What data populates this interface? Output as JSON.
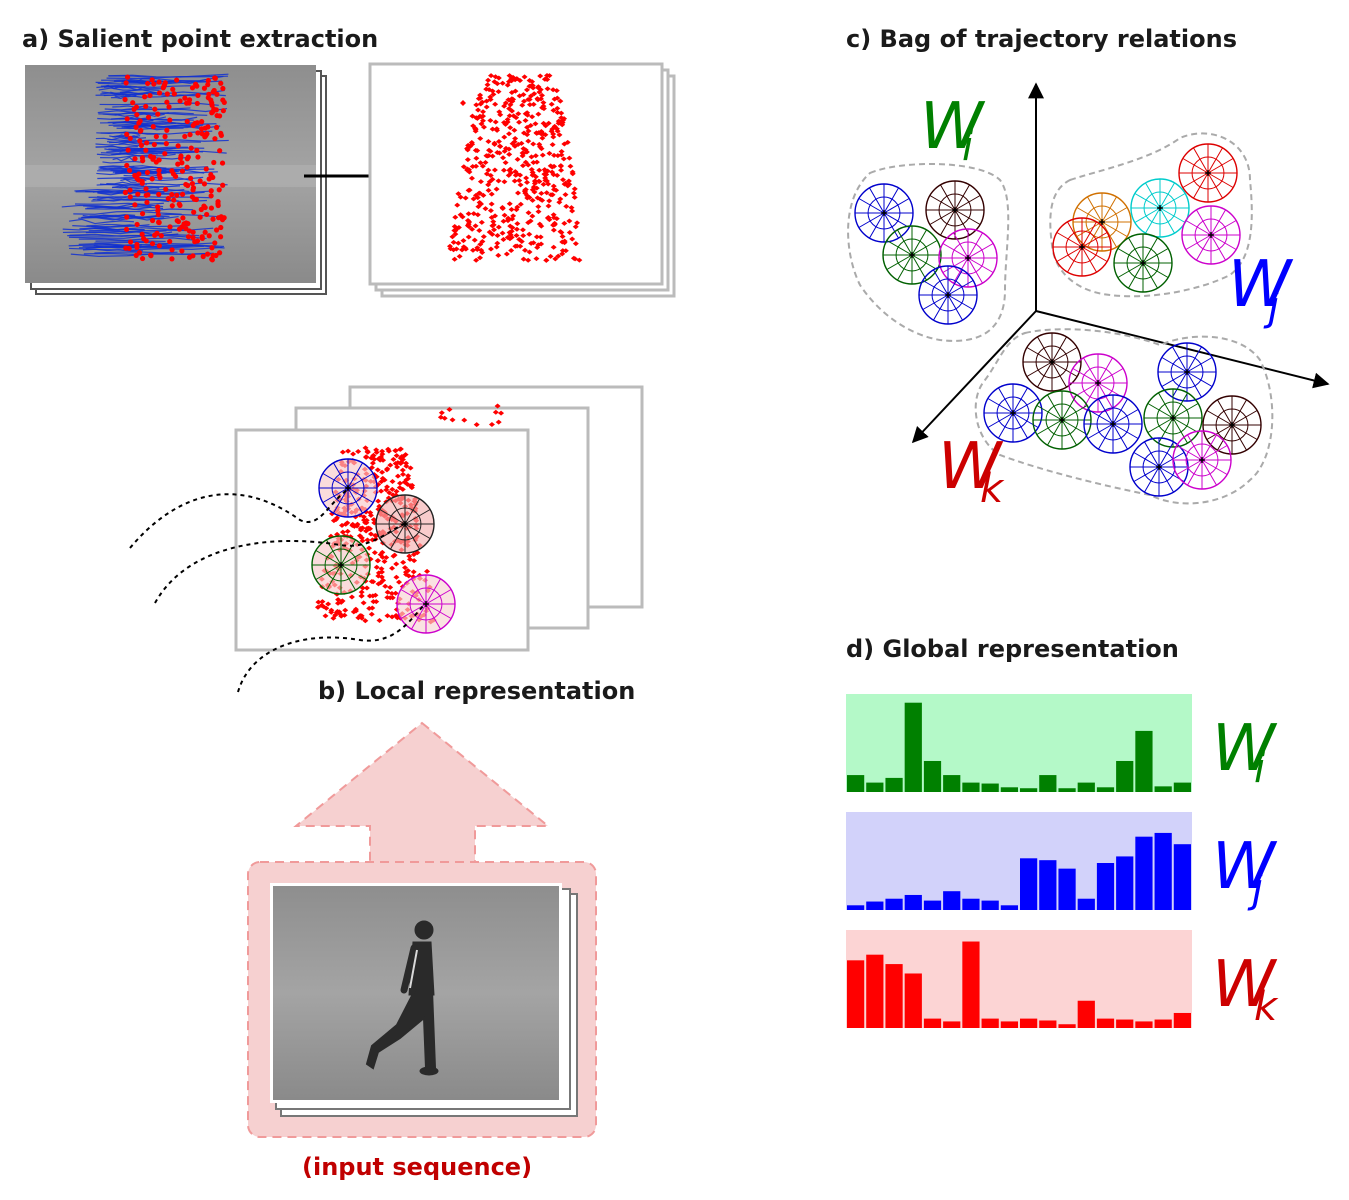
{
  "labels": {
    "a": "a) Salient point extraction",
    "b": "b) Local representation",
    "c": "c) Bag of trajectory relations",
    "d": "d) Global representation",
    "input": "(input sequence)"
  },
  "words": {
    "wi": {
      "base": "W",
      "sub": "i",
      "color": "#008000"
    },
    "wj": {
      "base": "W",
      "sub": "j",
      "color": "#0000ff"
    },
    "wk": {
      "base": "W",
      "sub": "k",
      "color": "#cc0000"
    }
  },
  "colors": {
    "salient": "#ff0000",
    "trajectory": "#1030d0",
    "arrow_fill": "#f6d0d0",
    "arrow_stroke": "#f0a0a0",
    "hist_bg_i": "#b4f9c8",
    "hist_bg_j": "#d2d2fa",
    "hist_bg_k": "#fcd4d4"
  },
  "chart_data": [
    {
      "type": "bar",
      "series": [
        {
          "name": "Wi",
          "values": [
            0.18,
            0.1,
            0.15,
            0.95,
            0.33,
            0.18,
            0.1,
            0.09,
            0.05,
            0.04,
            0.18,
            0.04,
            0.1,
            0.05,
            0.33,
            0.65,
            0.06,
            0.1
          ]
        }
      ],
      "ylim": [
        0,
        1
      ]
    },
    {
      "type": "bar",
      "series": [
        {
          "name": "Wj",
          "values": [
            0.05,
            0.09,
            0.12,
            0.16,
            0.1,
            0.2,
            0.12,
            0.1,
            0.05,
            0.55,
            0.53,
            0.44,
            0.12,
            0.5,
            0.57,
            0.78,
            0.82,
            0.7
          ]
        }
      ],
      "ylim": [
        0,
        1
      ]
    },
    {
      "type": "bar",
      "series": [
        {
          "name": "Wk",
          "values": [
            0.72,
            0.78,
            0.68,
            0.58,
            0.1,
            0.07,
            0.92,
            0.1,
            0.07,
            0.1,
            0.08,
            0.04,
            0.29,
            0.1,
            0.09,
            0.07,
            0.09,
            0.16
          ]
        }
      ],
      "ylim": [
        0,
        1
      ]
    }
  ]
}
